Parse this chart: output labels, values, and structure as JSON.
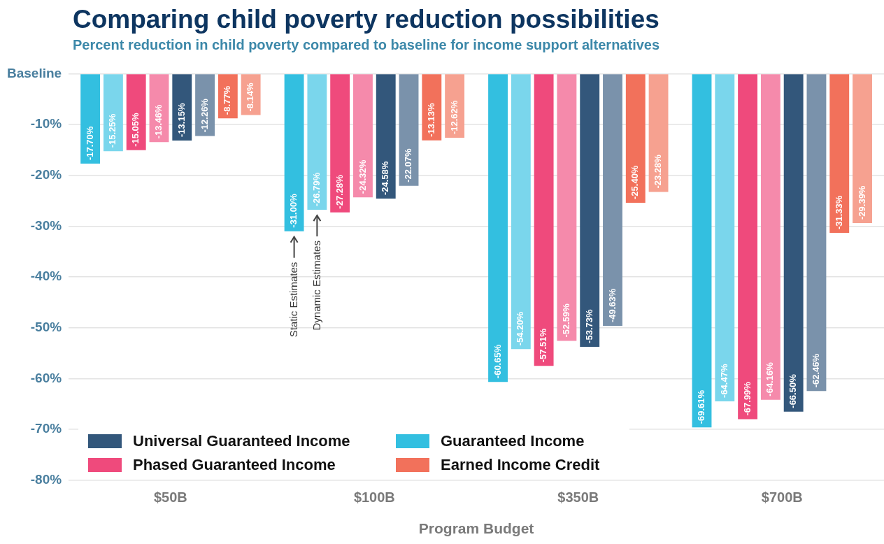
{
  "chart_data": {
    "type": "bar",
    "title": "Comparing child poverty reduction possibilities",
    "subtitle": "Percent reduction in child poverty compared to baseline for income support alternatives",
    "xlabel": "Program Budget",
    "categories": [
      "$50B",
      "$100B",
      "$350B",
      "$700B"
    ],
    "series": [
      {
        "name": "Guaranteed Income",
        "color": "#33bfe0",
        "values": [
          -17.7,
          -31.0,
          -60.65,
          -69.61
        ],
        "value_labels": [
          "-17.70%",
          "-31.00%",
          "-60.65%",
          "-69.61%"
        ]
      },
      {
        "color": "#7ad6ec",
        "values": [
          -15.25,
          -26.79,
          -54.2,
          -64.47
        ],
        "value_labels": [
          "-15.25%",
          "-26.79%",
          "-54.20%",
          "-64.47%"
        ]
      },
      {
        "name": "Phased Guaranteed Income",
        "color": "#ef4a7c",
        "values": [
          -15.05,
          -27.28,
          -57.51,
          -67.99
        ],
        "value_labels": [
          "-15.05%",
          "-27.28%",
          "-57.51%",
          "-67.99%"
        ]
      },
      {
        "color": "#f58aab",
        "values": [
          -13.46,
          -24.32,
          -52.59,
          -64.16
        ],
        "value_labels": [
          "-13.46%",
          "-24.32%",
          "-52.59%",
          "-64.16%"
        ]
      },
      {
        "name": "Universal Guaranteed Income",
        "color": "#33577b",
        "values": [
          -13.15,
          -24.58,
          -53.73,
          -66.5
        ],
        "value_labels": [
          "-13.15%",
          "-24.58%",
          "-53.73%",
          "-66.50%"
        ]
      },
      {
        "color": "#7a92ab",
        "values": [
          -12.26,
          -22.07,
          -49.63,
          -62.46
        ],
        "value_labels": [
          "-12.26%",
          "-22.07%",
          "-49.63%",
          "-62.46%"
        ]
      },
      {
        "name": "Earned Income Credit",
        "color": "#f2715b",
        "values": [
          -8.77,
          -13.13,
          -25.4,
          -31.33
        ],
        "value_labels": [
          "-8.77%",
          "-13.13%",
          "-25.40%",
          "-31.33%"
        ]
      },
      {
        "color": "#f6a190",
        "values": [
          -8.14,
          -12.62,
          -23.28,
          -29.39
        ],
        "value_labels": [
          "-8.14%",
          "-12.62%",
          "-23.28%",
          "-29.39%"
        ]
      }
    ],
    "ylim": [
      -80,
      0
    ],
    "yticks": [
      {
        "value": 0,
        "label": "Baseline"
      },
      {
        "value": -10,
        "label": "-10%"
      },
      {
        "value": -20,
        "label": "-20%"
      },
      {
        "value": -30,
        "label": "-30%"
      },
      {
        "value": -40,
        "label": "-40%"
      },
      {
        "value": -50,
        "label": "-50%"
      },
      {
        "value": -60,
        "label": "-60%"
      },
      {
        "value": -70,
        "label": "-70%"
      },
      {
        "value": -80,
        "label": "-80%"
      }
    ],
    "grid": "y",
    "legend": "bottom left",
    "annotations": [
      "Static Estimates",
      "Dynamic Estimates"
    ]
  }
}
